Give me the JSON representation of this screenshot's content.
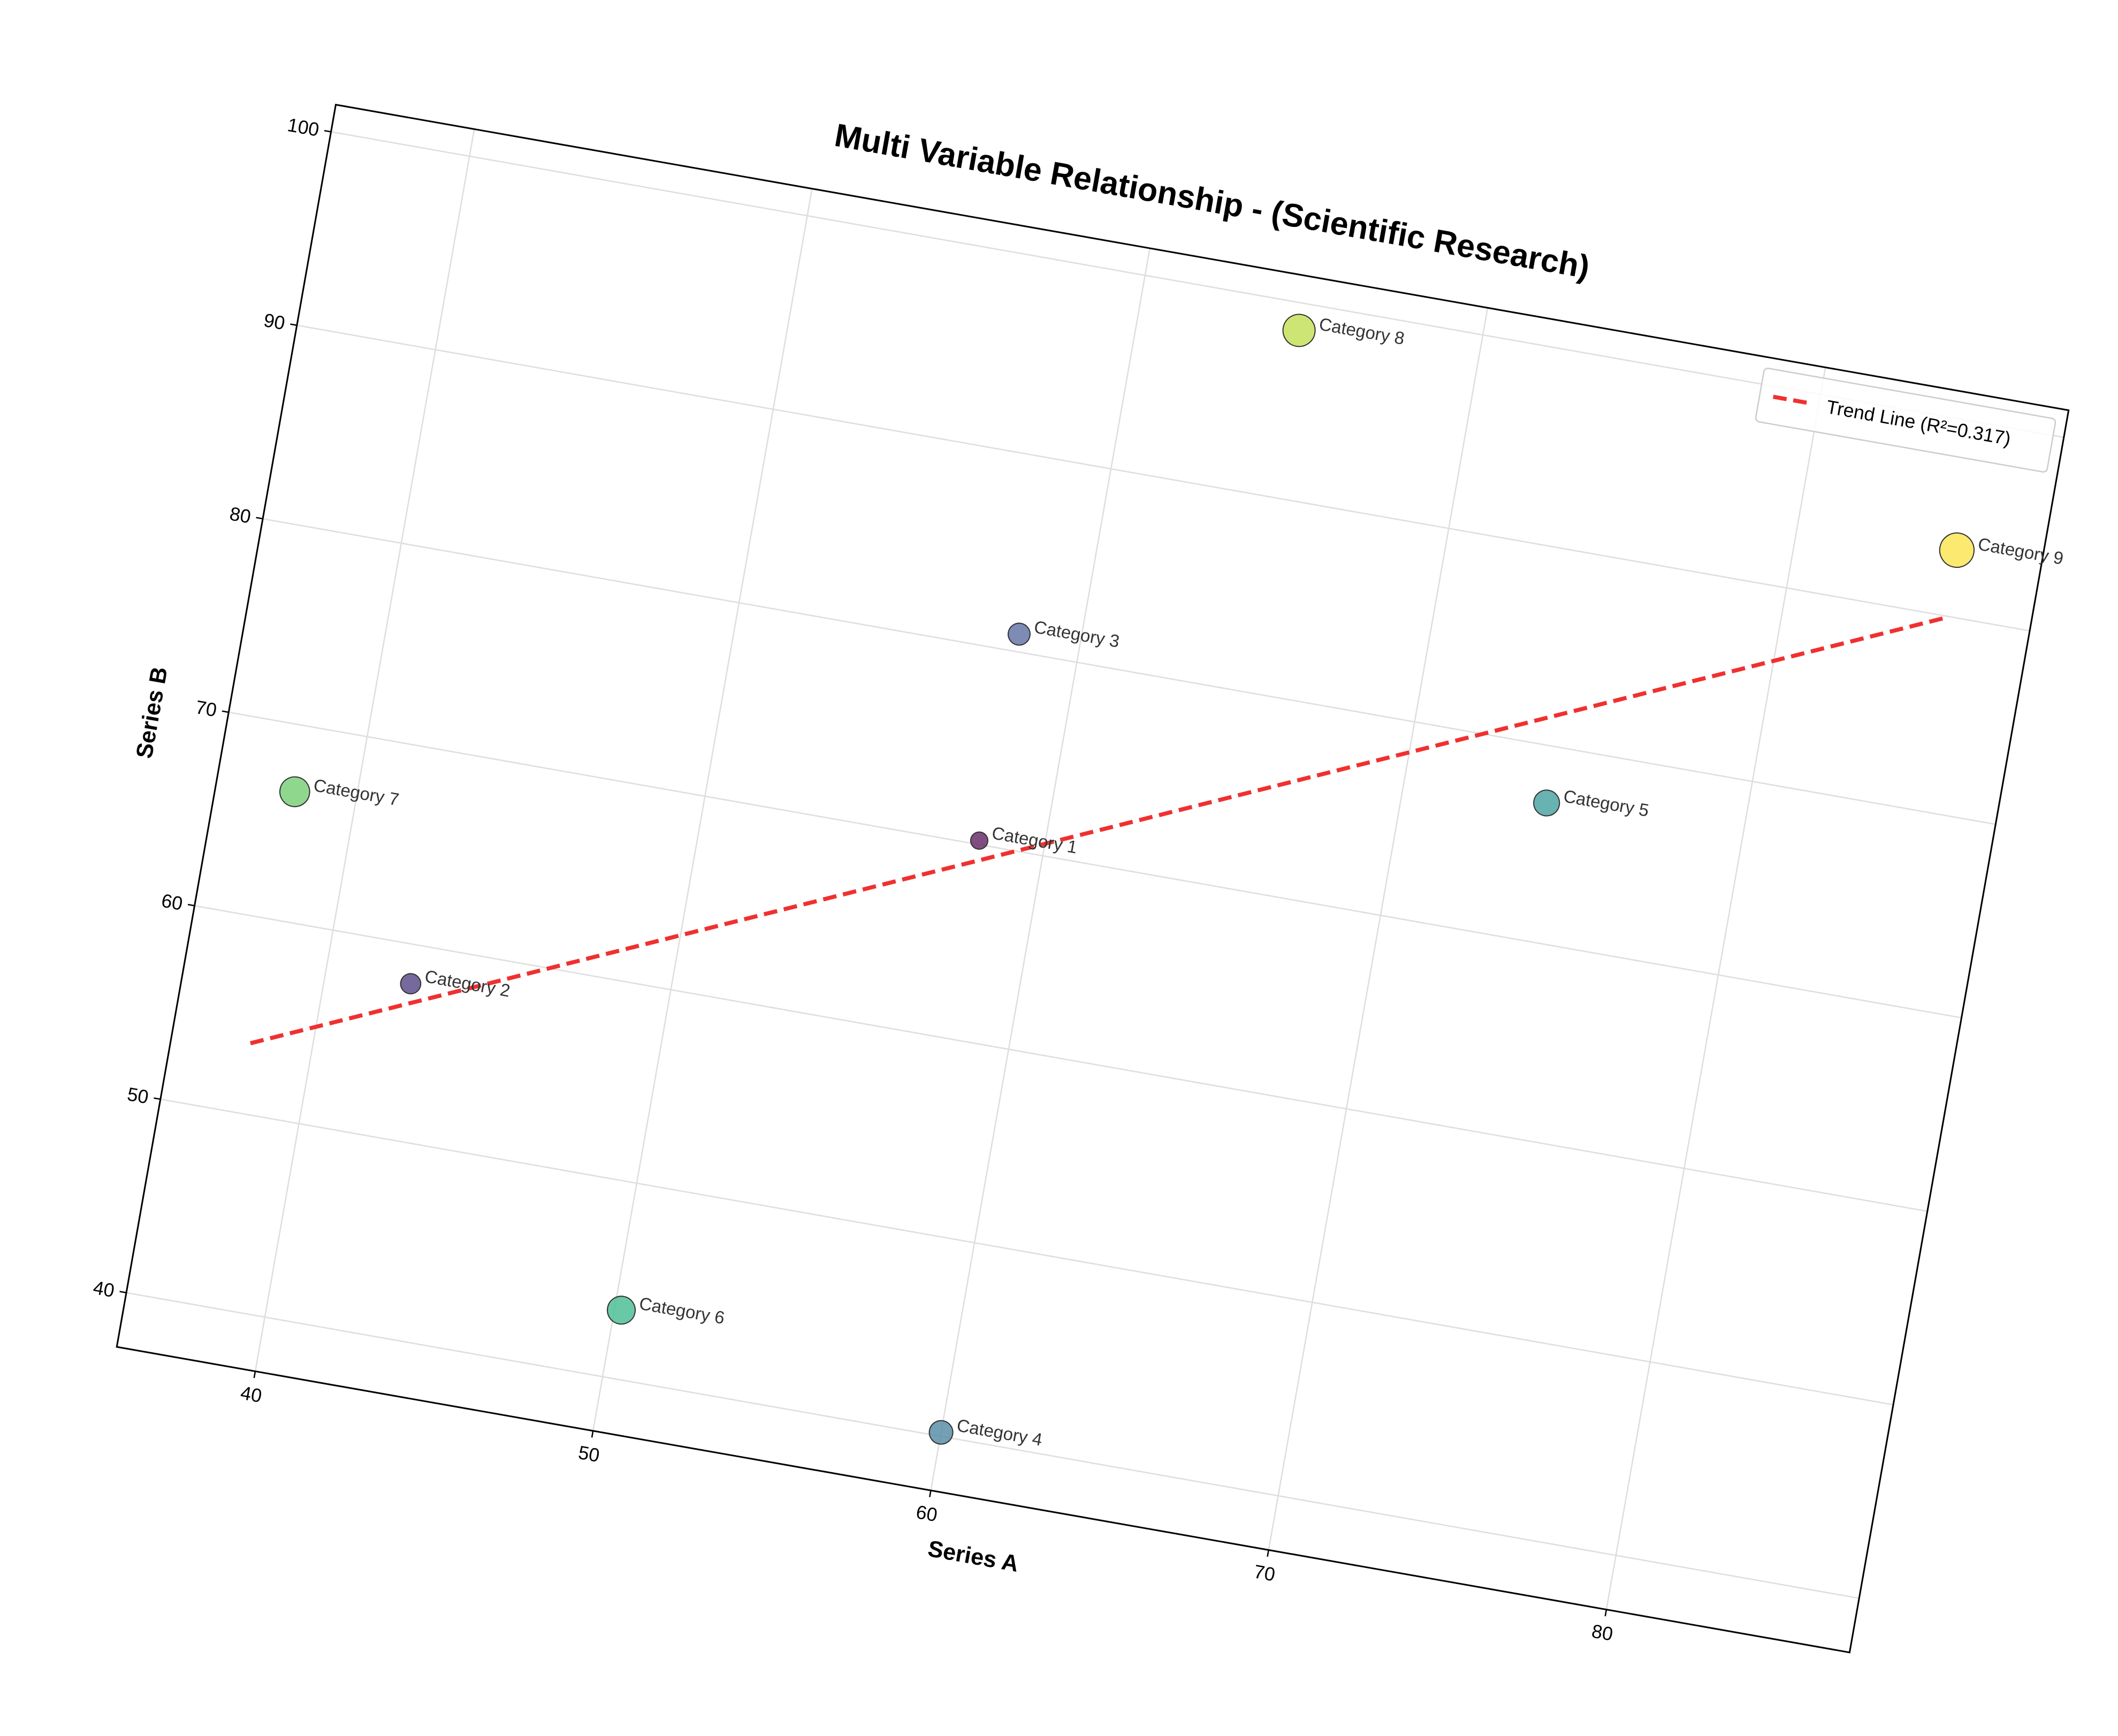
{
  "chart_data": {
    "type": "scatter",
    "title": "Multi Variable Relationship - (Scientific Research)",
    "x_label": "Series A",
    "y_label": "Series B",
    "categories": [
      "Category 1",
      "Category 2",
      "Category 3",
      "Category 4",
      "Category 5",
      "Category 6",
      "Category 7",
      "Category 8",
      "Category 9"
    ],
    "x": [
      58.1,
      42.5,
      58.2,
      60.0,
      74.2,
      50.2,
      38.2,
      64.7,
      84.7
    ],
    "values": [
      70.2,
      58.0,
      80.9,
      40.2,
      77.1,
      43.5,
      66.6,
      98.6,
      93.4
    ],
    "sizes": [
      40,
      55,
      65,
      75,
      90,
      105,
      120,
      140,
      160
    ],
    "colors": [
      "#6b2f6b",
      "#5e4f8c",
      "#6677a8",
      "#5b8fa8",
      "#4ea6a4",
      "#4fbf97",
      "#7dd07a",
      "#c4e25a",
      "#fbe556"
    ],
    "trend": {
      "name": "Trend Line (R²=0.317)",
      "color": "#f03030",
      "x": [
        38.2,
        84.7
      ],
      "values": [
        53.6,
        89.9
      ]
    },
    "xlim": [
      35.9,
      87.2
    ],
    "ylim": [
      37.2,
      101.4
    ],
    "xticks": [
      40,
      50,
      60,
      70,
      80
    ],
    "yticks": [
      40,
      50,
      60,
      70,
      80,
      90,
      100
    ],
    "grid": true,
    "legend": "upper right",
    "rotation": 10
  }
}
